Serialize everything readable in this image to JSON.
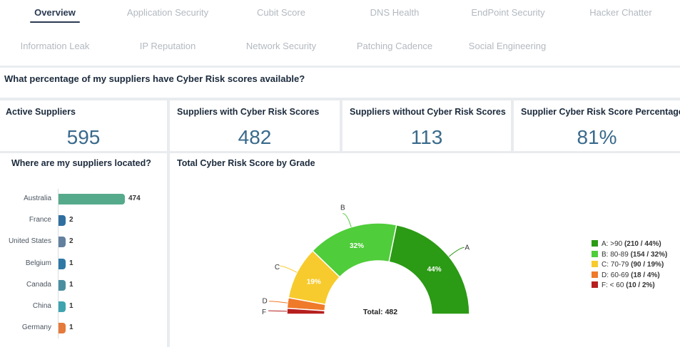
{
  "tabs": {
    "row1": [
      {
        "label": "Overview",
        "active": true
      },
      {
        "label": "Application Security"
      },
      {
        "label": "Cubit Score"
      },
      {
        "label": "DNS Health"
      },
      {
        "label": "EndPoint Security"
      },
      {
        "label": "Hacker Chatter"
      }
    ],
    "row2": [
      {
        "label": "Information Leak"
      },
      {
        "label": "IP Reputation"
      },
      {
        "label": "Network Security"
      },
      {
        "label": "Patching Cadence"
      },
      {
        "label": "Social Engineering"
      }
    ]
  },
  "question": "What percentage of my suppliers have Cyber Risk scores available?",
  "kpis": [
    {
      "label": "Active Suppliers",
      "value": "595"
    },
    {
      "label": "Suppliers with Cyber Risk Scores",
      "value": "482"
    },
    {
      "label": "Suppliers without Cyber Risk Scores",
      "value": "113"
    },
    {
      "label": "Supplier Cyber Risk Score Percentage",
      "value": "81%"
    }
  ],
  "location_panel": {
    "title": "Where are my suppliers located?"
  },
  "grade_panel": {
    "title": "Total Cyber Risk Score by Grade",
    "total_label": "Total: 482"
  },
  "colors": {
    "grade_A": "#2b9a14",
    "grade_B": "#4fcd3a",
    "grade_C": "#f7cb2d",
    "grade_D": "#ef7a2a",
    "grade_F": "#b71f1f",
    "tab_active": "#2a3a52",
    "kpi_value": "#3a6a8c"
  },
  "chart_data": [
    {
      "type": "bar",
      "orientation": "horizontal",
      "title": "Where are my suppliers located?",
      "categories": [
        "Australia",
        "France",
        "United States",
        "Belgium",
        "Canada",
        "China",
        "Germany"
      ],
      "values": [
        474,
        2,
        2,
        1,
        1,
        1,
        1
      ],
      "bar_colors": [
        "#56aa8c",
        "#2f6fa0",
        "#63809e",
        "#2f78a6",
        "#4a8fa0",
        "#3fa3b0",
        "#e67a3a"
      ]
    },
    {
      "type": "pie",
      "subtype": "semi-donut",
      "title": "Total Cyber Risk Score by Grade",
      "slices": [
        {
          "label": "A",
          "legend_text": "A: >90",
          "count": 210,
          "percent": 44,
          "legend_bold": "(210 / 44%)",
          "color": "#2b9a14"
        },
        {
          "label": "B",
          "legend_text": "B: 80-89",
          "count": 154,
          "percent": 32,
          "legend_bold": "(154 / 32%)",
          "color": "#4fcd3a"
        },
        {
          "label": "C",
          "legend_text": "C: 70-79",
          "count": 90,
          "percent": 19,
          "legend_bold": "(90 / 19%)",
          "color": "#f7cb2d"
        },
        {
          "label": "D",
          "legend_text": "D: 60-69",
          "count": 18,
          "percent": 4,
          "legend_bold": "(18 / 4%)",
          "color": "#ef7a2a"
        },
        {
          "label": "F",
          "legend_text": "F: < 60",
          "count": 10,
          "percent": 2,
          "legend_bold": "(10 / 2%)",
          "color": "#b71f1f"
        }
      ],
      "total": 482,
      "legend_position": "right"
    }
  ]
}
